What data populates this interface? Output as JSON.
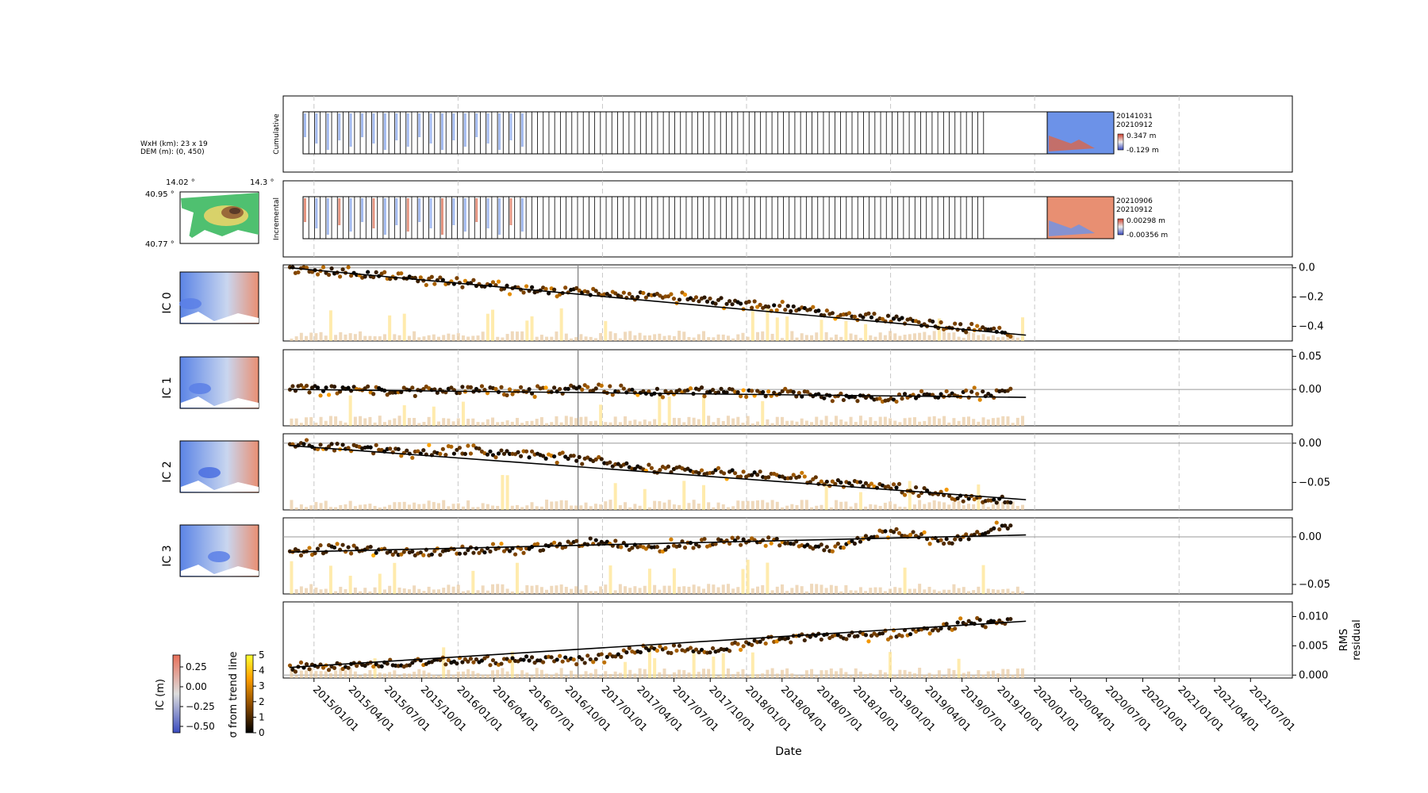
{
  "meta": {
    "size_label": "WxH (km): 23 x 19",
    "dem_label": "DEM (m): (0, 450)",
    "lon_min": "14.02 °",
    "lon_max": "14.3 °",
    "lat_max": "40.95 °",
    "lat_min": "40.77 °"
  },
  "strips": {
    "cumulative": {
      "label": "Cumulative",
      "date_start": "20141031",
      "date_end": "20210912",
      "cbar_max": "0.347 m",
      "cbar_min": "-0.129 m"
    },
    "incremental": {
      "label": "Incremental",
      "date_start": "20210906",
      "date_end": "20210912",
      "cbar_max": "0.00298 m",
      "cbar_min": "-0.00356 m"
    }
  },
  "colorbars": {
    "ic": {
      "label": "IC (m)",
      "ticks": [
        "0.25",
        "0.00",
        "−0.25",
        "−0.50"
      ],
      "values": [
        0.25,
        0.0,
        -0.25,
        -0.5
      ],
      "range": [
        -0.58,
        0.4
      ]
    },
    "sigma": {
      "label": "σ from trend line",
      "ticks": [
        "5",
        "4",
        "3",
        "2",
        "1",
        "0"
      ],
      "values": [
        5,
        4,
        3,
        2,
        1,
        0
      ],
      "range": [
        0,
        5
      ]
    }
  },
  "colors": {
    "trend_line": "#000000",
    "gridline_vertical": "#c8c8c8",
    "zero_line": "#999999",
    "bars": "#e8c9a0",
    "bars_highlight": "#ffe28a"
  },
  "chart_data": [
    {
      "type": "scatter",
      "ylabel": "IC 0",
      "ylim": [
        -0.5,
        0.02
      ],
      "yticks": [
        0.0,
        -0.2,
        -0.4
      ],
      "ytick_labels": [
        "0.0",
        "−0.2",
        "−0.4"
      ],
      "trend": {
        "x": [
          "2014-10-31",
          "2019-12-10"
        ],
        "y": [
          0.0,
          -0.46
        ]
      },
      "points": {
        "x": [
          "2014-11-01",
          "2015-04-01",
          "2015-09-01",
          "2016-02-01",
          "2016-07-01",
          "2016-12-01",
          "2017-05-01",
          "2017-10-01",
          "2018-03-01",
          "2018-08-01",
          "2019-01-01",
          "2019-06-01",
          "2019-11-01"
        ],
        "y": [
          0.0,
          -0.03,
          -0.07,
          -0.11,
          -0.15,
          -0.17,
          -0.19,
          -0.22,
          -0.26,
          -0.31,
          -0.35,
          -0.4,
          -0.44
        ]
      }
    },
    {
      "type": "scatter",
      "ylabel": "IC 1",
      "ylim": [
        -0.055,
        0.06
      ],
      "yticks": [
        0.05,
        0.0
      ],
      "ytick_labels": [
        "0.05",
        "0.00"
      ],
      "trend": {
        "x": [
          "2014-10-31",
          "2019-12-10"
        ],
        "y": [
          0.0,
          -0.012
        ]
      },
      "points": {
        "x": [
          "2014-11-01",
          "2015-04-01",
          "2015-09-01",
          "2016-02-01",
          "2016-07-01",
          "2016-12-01",
          "2017-05-01",
          "2017-10-01",
          "2018-03-01",
          "2018-08-01",
          "2019-01-01",
          "2019-06-01",
          "2019-11-01"
        ],
        "y": [
          0.0,
          0.002,
          -0.004,
          0.0,
          -0.003,
          0.002,
          -0.004,
          -0.002,
          -0.006,
          -0.01,
          -0.012,
          -0.008,
          -0.005
        ]
      }
    },
    {
      "type": "scatter",
      "ylabel": "IC 2",
      "ylim": [
        -0.085,
        0.012
      ],
      "yticks": [
        0.0,
        -0.05
      ],
      "ytick_labels": [
        "0.00",
        "−0.05"
      ],
      "trend": {
        "x": [
          "2014-10-31",
          "2019-12-10"
        ],
        "y": [
          -0.003,
          -0.072
        ]
      },
      "points": {
        "x": [
          "2014-11-01",
          "2015-04-01",
          "2015-09-01",
          "2016-02-01",
          "2016-07-01",
          "2016-12-01",
          "2017-05-01",
          "2017-10-01",
          "2018-03-01",
          "2018-08-01",
          "2019-01-01",
          "2019-06-01",
          "2019-11-01"
        ],
        "y": [
          -0.002,
          -0.005,
          -0.012,
          -0.01,
          -0.015,
          -0.022,
          -0.033,
          -0.036,
          -0.04,
          -0.05,
          -0.055,
          -0.068,
          -0.073
        ]
      }
    },
    {
      "type": "scatter",
      "ylabel": "IC 3",
      "ylim": [
        -0.06,
        0.02
      ],
      "yticks": [
        0.0,
        -0.05
      ],
      "ytick_labels": [
        "0.00",
        "−0.05"
      ],
      "trend": {
        "x": [
          "2014-10-31",
          "2019-12-10"
        ],
        "y": [
          -0.016,
          0.002
        ]
      },
      "points": {
        "x": [
          "2014-11-01",
          "2015-04-01",
          "2015-09-01",
          "2016-02-01",
          "2016-07-01",
          "2016-12-01",
          "2017-05-01",
          "2017-10-01",
          "2018-03-01",
          "2018-08-01",
          "2019-01-01",
          "2019-06-01",
          "2019-11-01"
        ],
        "y": [
          -0.016,
          -0.012,
          -0.018,
          -0.014,
          -0.013,
          -0.004,
          -0.012,
          -0.006,
          -0.003,
          -0.012,
          0.005,
          -0.005,
          0.012
        ]
      }
    },
    {
      "type": "scatter",
      "ylabel": "RMS\nresidual",
      "ylim": [
        -0.0005,
        0.0125
      ],
      "yticks": [
        0.01,
        0.005,
        0.0
      ],
      "ytick_labels": [
        "0.010",
        "0.005",
        "0.000"
      ],
      "trend": {
        "x": [
          "2014-10-31",
          "2019-12-10"
        ],
        "y": [
          0.0013,
          0.0092
        ]
      },
      "points": {
        "x": [
          "2014-11-01",
          "2015-04-01",
          "2015-09-01",
          "2016-02-01",
          "2016-07-01",
          "2016-12-01",
          "2017-05-01",
          "2017-10-01",
          "2018-03-01",
          "2018-08-01",
          "2019-01-01",
          "2019-06-01",
          "2019-11-01"
        ],
        "y": [
          0.0012,
          0.0018,
          0.002,
          0.0024,
          0.0028,
          0.0026,
          0.0046,
          0.0042,
          0.006,
          0.0068,
          0.0068,
          0.0085,
          0.0093
        ]
      }
    }
  ],
  "xaxis": {
    "label": "Date",
    "range": [
      "2014-10-15",
      "2021-10-15"
    ],
    "ticks": [
      "2015/01/01",
      "2015/04/01",
      "2015/07/01",
      "2015/10/01",
      "2016/01/01",
      "2016/04/01",
      "2016/07/01",
      "2016/10/01",
      "2017/01/01",
      "2017/04/01",
      "2017/07/01",
      "2017/10/01",
      "2018/01/01",
      "2018/04/01",
      "2018/07/01",
      "2018/10/01",
      "2019/01/01",
      "2019/04/01",
      "2019/07/01",
      "2019/10/01",
      "2020/01/01",
      "2020/04/01",
      "2020/07/01",
      "2020/10/01",
      "2021/01/01",
      "2021/04/01",
      "2021/07/01"
    ],
    "dashed_years": [
      "2015-01-01",
      "2016-01-01",
      "2017-01-01",
      "2018-01-01",
      "2019-01-01",
      "2020-01-01",
      "2021-01-01"
    ],
    "marker_date": "2016-10-31"
  }
}
